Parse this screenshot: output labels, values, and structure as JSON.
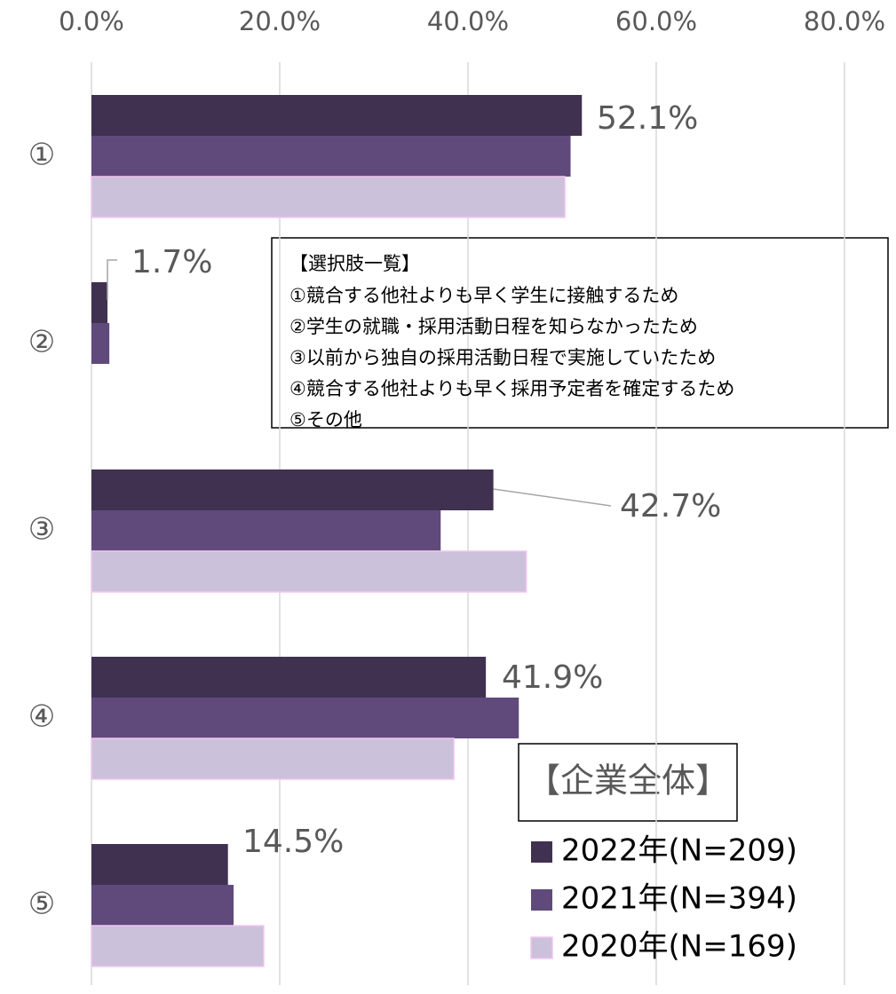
{
  "chart_data": {
    "type": "bar",
    "orientation": "horizontal",
    "categories": [
      "①",
      "②",
      "③",
      "④",
      "⑤"
    ],
    "series": [
      {
        "name": "2022年(N=209)",
        "color": "#403151",
        "values": [
          52.1,
          1.7,
          42.7,
          41.9,
          14.5
        ],
        "value_labels": [
          "52.1%",
          "1.7%",
          "42.7%",
          "41.9%",
          "14.5%"
        ]
      },
      {
        "name": "2021年(N=394)",
        "color": "#604a7b",
        "values": [
          50.9,
          1.9,
          37.1,
          45.4,
          15.1
        ]
      },
      {
        "name": "2020年(N=169)",
        "color": "#ccc1da",
        "values": [
          50.3,
          0,
          46.2,
          38.5,
          18.3
        ]
      }
    ],
    "xlim": [
      0,
      80
    ],
    "xticks": [
      {
        "value": 0,
        "label": "0.0%"
      },
      {
        "value": 20,
        "label": "20.0%"
      },
      {
        "value": 40,
        "label": "40.0%"
      },
      {
        "value": 60,
        "label": "60.0%"
      },
      {
        "value": 80,
        "label": "80.0%"
      }
    ],
    "grid": true,
    "legend_title": "【企業全体】",
    "legend_position": "lower right",
    "choices_title": "【選択肢一覧】",
    "choices": [
      "①競合する他社よりも早く学生に接触するため",
      "②学生の就職・採用活動日程を知らなかったため",
      "③以前から独自の採用活動日程で実施していたため",
      "④競合する他社よりも早く採用予定者を確定するため",
      "⑤その他"
    ]
  }
}
